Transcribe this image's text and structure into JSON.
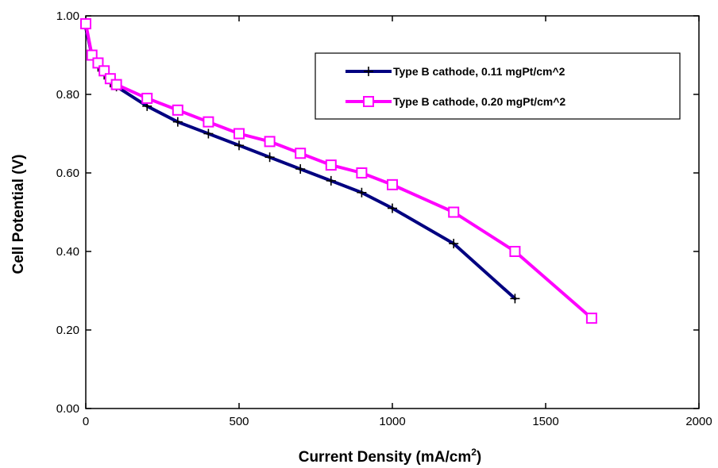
{
  "chart_data": {
    "type": "line",
    "title": "",
    "xlabel": "Current Density (mA/cm",
    "xlabel_sup": "2",
    "xlabel_suffix": ")",
    "ylabel": "Cell Potential (V)",
    "xlim": [
      0,
      2000
    ],
    "ylim": [
      0,
      1.0
    ],
    "xticks": [
      0,
      500,
      1000,
      1500,
      2000
    ],
    "xtick_labels": [
      "0",
      "500",
      "1000",
      "1500",
      "2000"
    ],
    "yticks": [
      0,
      0.2,
      0.4,
      0.6,
      0.8,
      1.0
    ],
    "ytick_labels": [
      "0.00",
      "0.20",
      "0.40",
      "0.60",
      "0.80",
      "1.00"
    ],
    "grid": false,
    "legend_position": "top-right",
    "series": [
      {
        "name": "Type B cathode, 0.11 mgPt/cm^2",
        "color": "#000080",
        "marker": "plus",
        "x": [
          0,
          20,
          40,
          60,
          80,
          100,
          200,
          300,
          400,
          500,
          600,
          700,
          800,
          900,
          1000,
          1200,
          1400
        ],
        "y": [
          0.97,
          0.9,
          0.87,
          0.85,
          0.83,
          0.82,
          0.77,
          0.73,
          0.7,
          0.67,
          0.64,
          0.61,
          0.58,
          0.55,
          0.51,
          0.42,
          0.28
        ]
      },
      {
        "name": "Type B cathode, 0.20 mgPt/cm^2",
        "color": "#ff00ff",
        "marker": "square",
        "x": [
          0,
          20,
          40,
          60,
          80,
          100,
          200,
          300,
          400,
          500,
          600,
          700,
          800,
          900,
          1000,
          1200,
          1400,
          1650
        ],
        "y": [
          0.98,
          0.9,
          0.88,
          0.86,
          0.84,
          0.825,
          0.79,
          0.76,
          0.73,
          0.7,
          0.68,
          0.65,
          0.62,
          0.6,
          0.57,
          0.5,
          0.4,
          0.23
        ]
      }
    ]
  }
}
